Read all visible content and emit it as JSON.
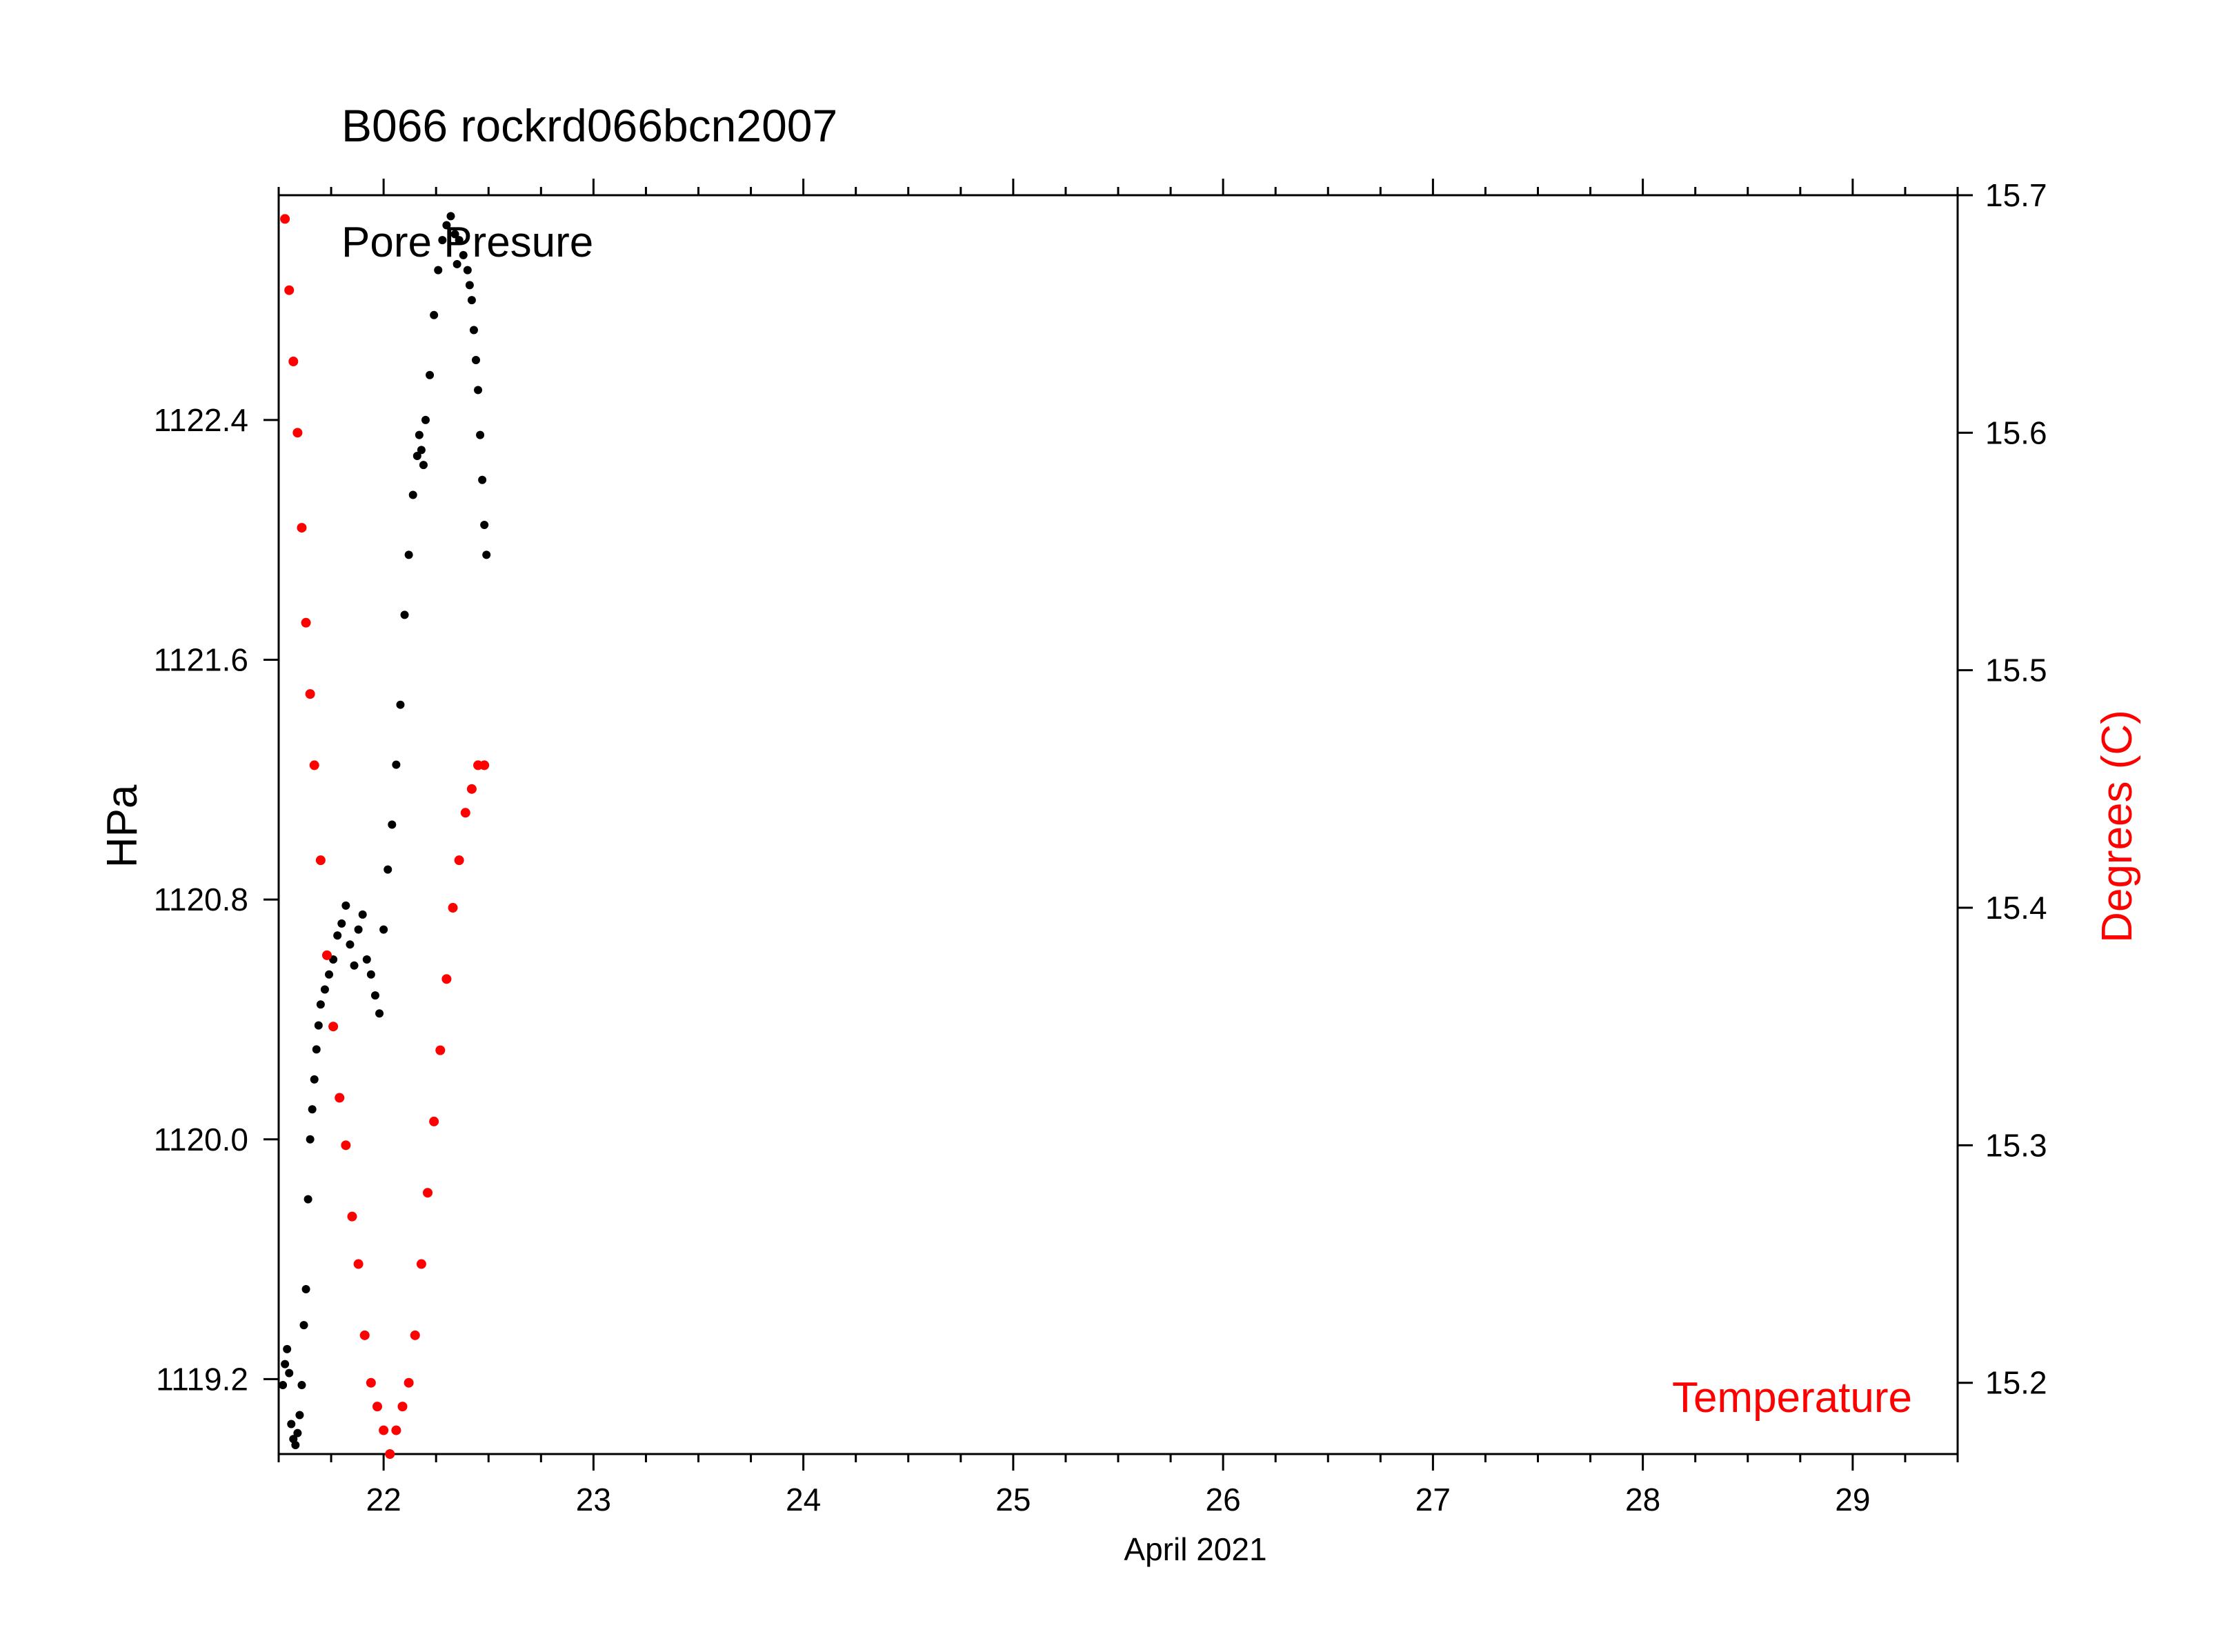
{
  "chart_data": {
    "type": "scatter",
    "title": "B066  rockrd066bcn2007",
    "xlabel": "April 2021",
    "x_ticks": [
      "22",
      "23",
      "24",
      "25",
      "26",
      "27",
      "28",
      "29"
    ],
    "x_range": [
      21.5,
      29.5
    ],
    "y_left": {
      "label": "HPa",
      "range": [
        1118.95,
        1123.15
      ],
      "ticks": [
        "1119.2",
        "1120.0",
        "1120.8",
        "1121.6",
        "1122.4"
      ]
    },
    "y_right": {
      "label": "Degrees (C)",
      "range": [
        15.17,
        15.7
      ],
      "ticks": [
        "15.2",
        "15.3",
        "15.4",
        "15.5",
        "15.6",
        "15.7"
      ]
    },
    "grid": false,
    "series": [
      {
        "name": "Pore Presure",
        "axis": "left",
        "color": "#000000",
        "points": [
          [
            21.52,
            1119.18
          ],
          [
            21.53,
            1119.25
          ],
          [
            21.54,
            1119.3
          ],
          [
            21.55,
            1119.22
          ],
          [
            21.56,
            1119.05
          ],
          [
            21.57,
            1119.0
          ],
          [
            21.58,
            1118.98
          ],
          [
            21.59,
            1119.02
          ],
          [
            21.6,
            1119.08
          ],
          [
            21.61,
            1119.18
          ],
          [
            21.62,
            1119.38
          ],
          [
            21.63,
            1119.5
          ],
          [
            21.64,
            1119.8
          ],
          [
            21.65,
            1120.0
          ],
          [
            21.66,
            1120.1
          ],
          [
            21.67,
            1120.2
          ],
          [
            21.68,
            1120.3
          ],
          [
            21.69,
            1120.38
          ],
          [
            21.7,
            1120.45
          ],
          [
            21.72,
            1120.5
          ],
          [
            21.74,
            1120.55
          ],
          [
            21.76,
            1120.6
          ],
          [
            21.78,
            1120.68
          ],
          [
            21.8,
            1120.72
          ],
          [
            21.82,
            1120.78
          ],
          [
            21.84,
            1120.65
          ],
          [
            21.86,
            1120.58
          ],
          [
            21.88,
            1120.7
          ],
          [
            21.9,
            1120.75
          ],
          [
            21.92,
            1120.6
          ],
          [
            21.94,
            1120.55
          ],
          [
            21.96,
            1120.48
          ],
          [
            21.98,
            1120.42
          ],
          [
            22.0,
            1120.7
          ],
          [
            22.02,
            1120.9
          ],
          [
            22.04,
            1121.05
          ],
          [
            22.06,
            1121.25
          ],
          [
            22.08,
            1121.45
          ],
          [
            22.1,
            1121.75
          ],
          [
            22.12,
            1121.95
          ],
          [
            22.14,
            1122.15
          ],
          [
            22.16,
            1122.28
          ],
          [
            22.17,
            1122.35
          ],
          [
            22.18,
            1122.3
          ],
          [
            22.19,
            1122.25
          ],
          [
            22.2,
            1122.4
          ],
          [
            22.22,
            1122.55
          ],
          [
            22.24,
            1122.75
          ],
          [
            22.26,
            1122.9
          ],
          [
            22.28,
            1123.0
          ],
          [
            22.3,
            1123.05
          ],
          [
            22.32,
            1123.08
          ],
          [
            22.34,
            1123.02
          ],
          [
            22.35,
            1122.92
          ],
          [
            22.36,
            1123.0
          ],
          [
            22.38,
            1122.95
          ],
          [
            22.4,
            1122.9
          ],
          [
            22.41,
            1122.85
          ],
          [
            22.42,
            1122.8
          ],
          [
            22.43,
            1122.7
          ],
          [
            22.44,
            1122.6
          ],
          [
            22.45,
            1122.5
          ],
          [
            22.46,
            1122.35
          ],
          [
            22.47,
            1122.2
          ],
          [
            22.48,
            1122.05
          ],
          [
            22.49,
            1121.95
          ]
        ]
      },
      {
        "name": "Temperature",
        "axis": "right",
        "color": "#ff0000",
        "points": [
          [
            21.53,
            15.69
          ],
          [
            21.55,
            15.66
          ],
          [
            21.57,
            15.63
          ],
          [
            21.59,
            15.6
          ],
          [
            21.61,
            15.56
          ],
          [
            21.63,
            15.52
          ],
          [
            21.65,
            15.49
          ],
          [
            21.67,
            15.46
          ],
          [
            21.7,
            15.42
          ],
          [
            21.73,
            15.38
          ],
          [
            21.76,
            15.35
          ],
          [
            21.79,
            15.32
          ],
          [
            21.82,
            15.3
          ],
          [
            21.85,
            15.27
          ],
          [
            21.88,
            15.25
          ],
          [
            21.91,
            15.22
          ],
          [
            21.94,
            15.2
          ],
          [
            21.97,
            15.19
          ],
          [
            22.0,
            15.18
          ],
          [
            22.03,
            15.17
          ],
          [
            22.06,
            15.18
          ],
          [
            22.09,
            15.19
          ],
          [
            22.12,
            15.2
          ],
          [
            22.15,
            15.22
          ],
          [
            22.18,
            15.25
          ],
          [
            22.21,
            15.28
          ],
          [
            22.24,
            15.31
          ],
          [
            22.27,
            15.34
          ],
          [
            22.3,
            15.37
          ],
          [
            22.33,
            15.4
          ],
          [
            22.36,
            15.42
          ],
          [
            22.39,
            15.44
          ],
          [
            22.42,
            15.45
          ],
          [
            22.45,
            15.46
          ],
          [
            22.48,
            15.46
          ]
        ]
      }
    ],
    "annotations": [
      "Pore Presure",
      "Temperature"
    ]
  }
}
